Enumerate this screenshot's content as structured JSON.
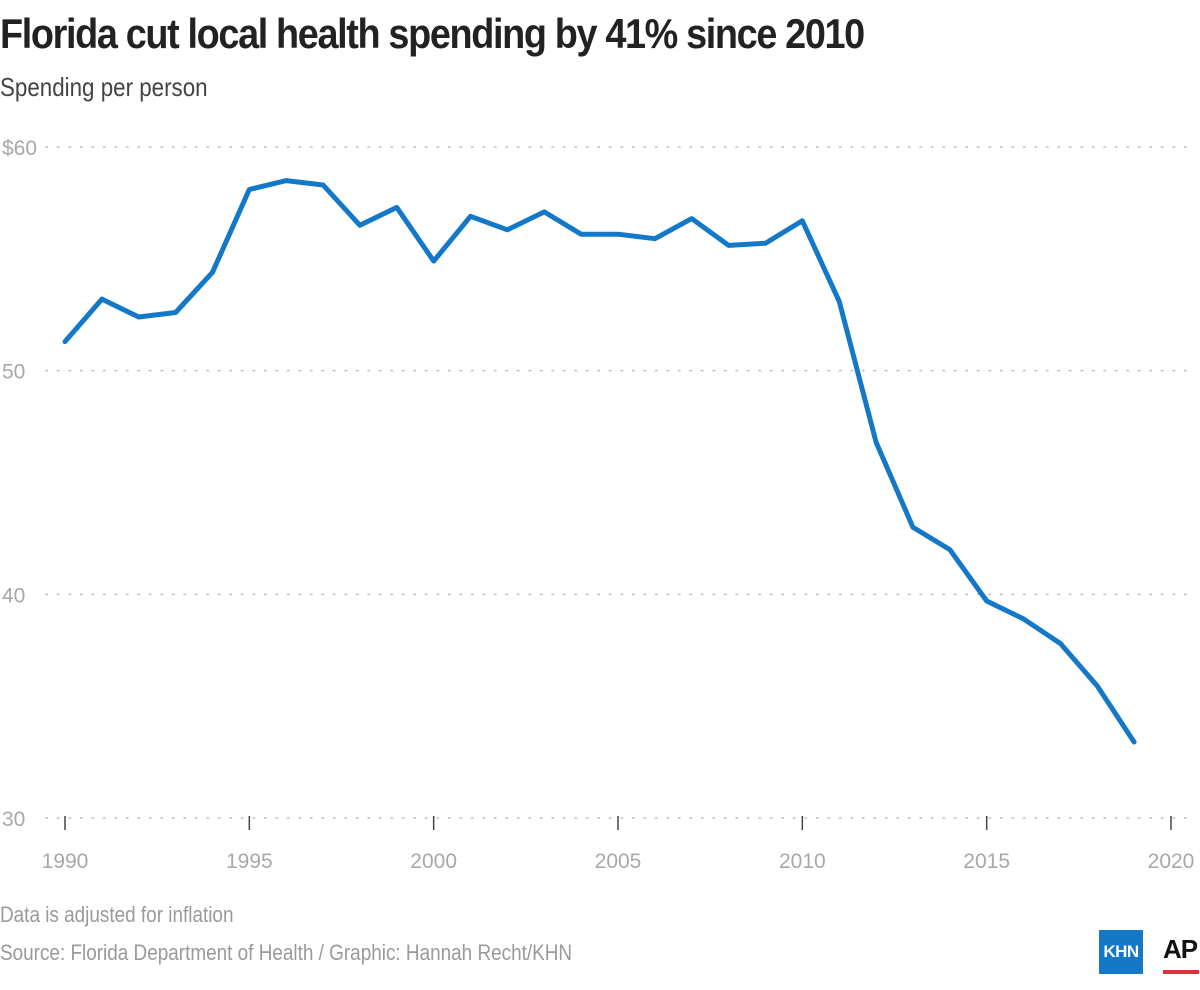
{
  "title": "Florida cut local health spending by 41% since 2010",
  "subtitle": "Spending per person",
  "note": "Data is adjusted for inflation",
  "source": "Source: Florida Department of Health / Graphic: Hannah Recht/KHN",
  "logos": {
    "khn": "KHN",
    "ap": "AP"
  },
  "colors": {
    "line": "#1478c8",
    "grid": "#bdbdbd",
    "axis_text": "#a8a8a8",
    "ap_bar": "#e0303e"
  },
  "chart_data": {
    "type": "line",
    "title": "Florida cut local health spending by 41% since 2010",
    "subtitle": "Spending per person",
    "xlabel": "",
    "ylabel": "",
    "xlim": [
      1990,
      2020
    ],
    "ylim": [
      30,
      60
    ],
    "x_ticks": [
      1990,
      1995,
      2000,
      2005,
      2010,
      2015,
      2020
    ],
    "y_ticks": [
      30,
      40,
      50,
      60
    ],
    "y_tick_labels": [
      "30",
      "40",
      "50",
      "$60"
    ],
    "grid": "horizontal dotted",
    "series": [
      {
        "x": [
          1990,
          1991,
          1992,
          1993,
          1994,
          1995,
          1996,
          1997,
          1998,
          1999,
          2000,
          2001,
          2002,
          2003,
          2004,
          2005,
          2006,
          2007,
          2008,
          2009,
          2010,
          2011,
          2012,
          2013,
          2014,
          2015,
          2016,
          2017,
          2018,
          2019
        ],
        "values": [
          51.3,
          53.2,
          52.4,
          52.6,
          54.4,
          58.1,
          58.5,
          58.3,
          56.5,
          57.3,
          54.9,
          56.9,
          56.3,
          57.1,
          56.1,
          56.1,
          55.9,
          56.8,
          55.6,
          55.7,
          56.7,
          53.1,
          46.8,
          43.0,
          42.0,
          39.7,
          38.9,
          37.8,
          35.9,
          33.4
        ]
      }
    ]
  }
}
